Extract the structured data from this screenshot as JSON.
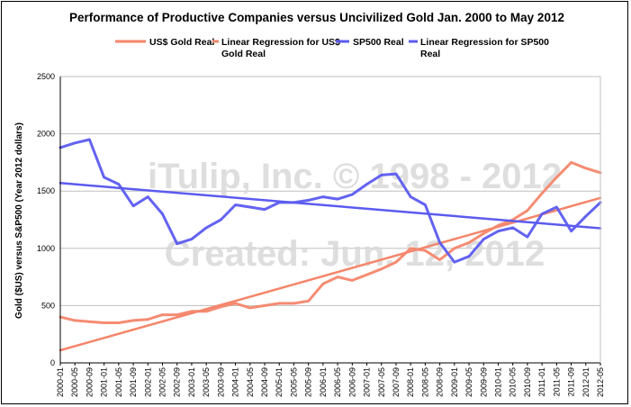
{
  "chart_data": {
    "type": "line",
    "title": "Performance of Productive Companies versus Uncivilized Gold Jan. 2000 to May 2012",
    "ylabel": "Gold ($US) versus S&P500 (Year 2012 dollars)",
    "xlabel": "",
    "ylim": [
      0,
      2500
    ],
    "yticks": [
      "0",
      "500",
      "1000",
      "1500",
      "2000",
      "2500"
    ],
    "grid": true,
    "legend_position": "top",
    "xticks": [
      "2000-01",
      "2000-05",
      "2000-09",
      "2001-01",
      "2001-05",
      "2001-09",
      "2002-01",
      "2002-05",
      "2002-09",
      "2003-01",
      "2003-05",
      "2003-09",
      "2004-01",
      "2004-05",
      "2004-09",
      "2005-01",
      "2005-05",
      "2005-09",
      "2006-01",
      "2006-05",
      "2006-09",
      "2007-01",
      "2007-05",
      "2007-09",
      "2008-01",
      "2008-05",
      "2008-09",
      "2009-01",
      "2009-05",
      "2009-09",
      "2010-01",
      "2010-05",
      "2010-09",
      "2011-01",
      "2011-05",
      "2011-09",
      "2012-01",
      "2012-05"
    ],
    "series": [
      {
        "name": "US$ Gold Real",
        "color": "#f4866b",
        "x": [
          "2000-01",
          "2000-05",
          "2000-09",
          "2001-01",
          "2001-05",
          "2001-09",
          "2002-01",
          "2002-05",
          "2002-09",
          "2003-01",
          "2003-05",
          "2003-09",
          "2004-01",
          "2004-05",
          "2004-09",
          "2005-01",
          "2005-05",
          "2005-09",
          "2006-01",
          "2006-05",
          "2006-09",
          "2007-01",
          "2007-05",
          "2007-09",
          "2008-01",
          "2008-05",
          "2008-09",
          "2009-01",
          "2009-05",
          "2009-09",
          "2010-01",
          "2010-05",
          "2010-09",
          "2011-01",
          "2011-05",
          "2011-09",
          "2012-01",
          "2012-05"
        ],
        "values": [
          400,
          370,
          360,
          350,
          350,
          370,
          380,
          420,
          420,
          450,
          450,
          490,
          520,
          480,
          500,
          520,
          520,
          540,
          690,
          750,
          720,
          770,
          820,
          880,
          1000,
          980,
          900,
          1000,
          1050,
          1130,
          1200,
          1250,
          1330,
          1480,
          1620,
          1750,
          1700,
          1660
        ]
      },
      {
        "name": "Linear Regression for US$ Gold Real",
        "color": "#f4866b",
        "x": [
          "2000-01",
          "2012-05"
        ],
        "values": [
          110,
          1440
        ]
      },
      {
        "name": "SP500 Real",
        "color": "#5b5bf0",
        "x": [
          "2000-01",
          "2000-05",
          "2000-09",
          "2001-01",
          "2001-05",
          "2001-09",
          "2002-01",
          "2002-05",
          "2002-09",
          "2003-01",
          "2003-05",
          "2003-09",
          "2004-01",
          "2004-05",
          "2004-09",
          "2005-01",
          "2005-05",
          "2005-09",
          "2006-01",
          "2006-05",
          "2006-09",
          "2007-01",
          "2007-05",
          "2007-09",
          "2008-01",
          "2008-05",
          "2008-09",
          "2009-01",
          "2009-05",
          "2009-09",
          "2010-01",
          "2010-05",
          "2010-09",
          "2011-01",
          "2011-05",
          "2011-09",
          "2012-01",
          "2012-05"
        ],
        "values": [
          1880,
          1920,
          1950,
          1620,
          1560,
          1370,
          1450,
          1300,
          1040,
          1080,
          1180,
          1250,
          1380,
          1360,
          1340,
          1400,
          1400,
          1420,
          1450,
          1430,
          1470,
          1560,
          1640,
          1650,
          1450,
          1380,
          1050,
          880,
          930,
          1080,
          1150,
          1180,
          1100,
          1300,
          1360,
          1150,
          1280,
          1400
        ]
      },
      {
        "name": "Linear Regression for SP500 Real",
        "color": "#5b5bf0",
        "x": [
          "2000-01",
          "2012-05"
        ],
        "values": [
          1570,
          1175
        ]
      }
    ],
    "legend": [
      {
        "label": "US$ Gold Real",
        "color": "#f4866b"
      },
      {
        "label": "Linear Regression for US$ Gold Real",
        "color": "#f4866b"
      },
      {
        "label": "SP500 Real",
        "color": "#5b5bf0"
      },
      {
        "label": "Linear Regression for SP500 Real",
        "color": "#5b5bf0"
      }
    ],
    "watermarks": [
      "iTulip, Inc. © 1998 - 2012",
      "Created: Jun. 12, 2012"
    ]
  }
}
